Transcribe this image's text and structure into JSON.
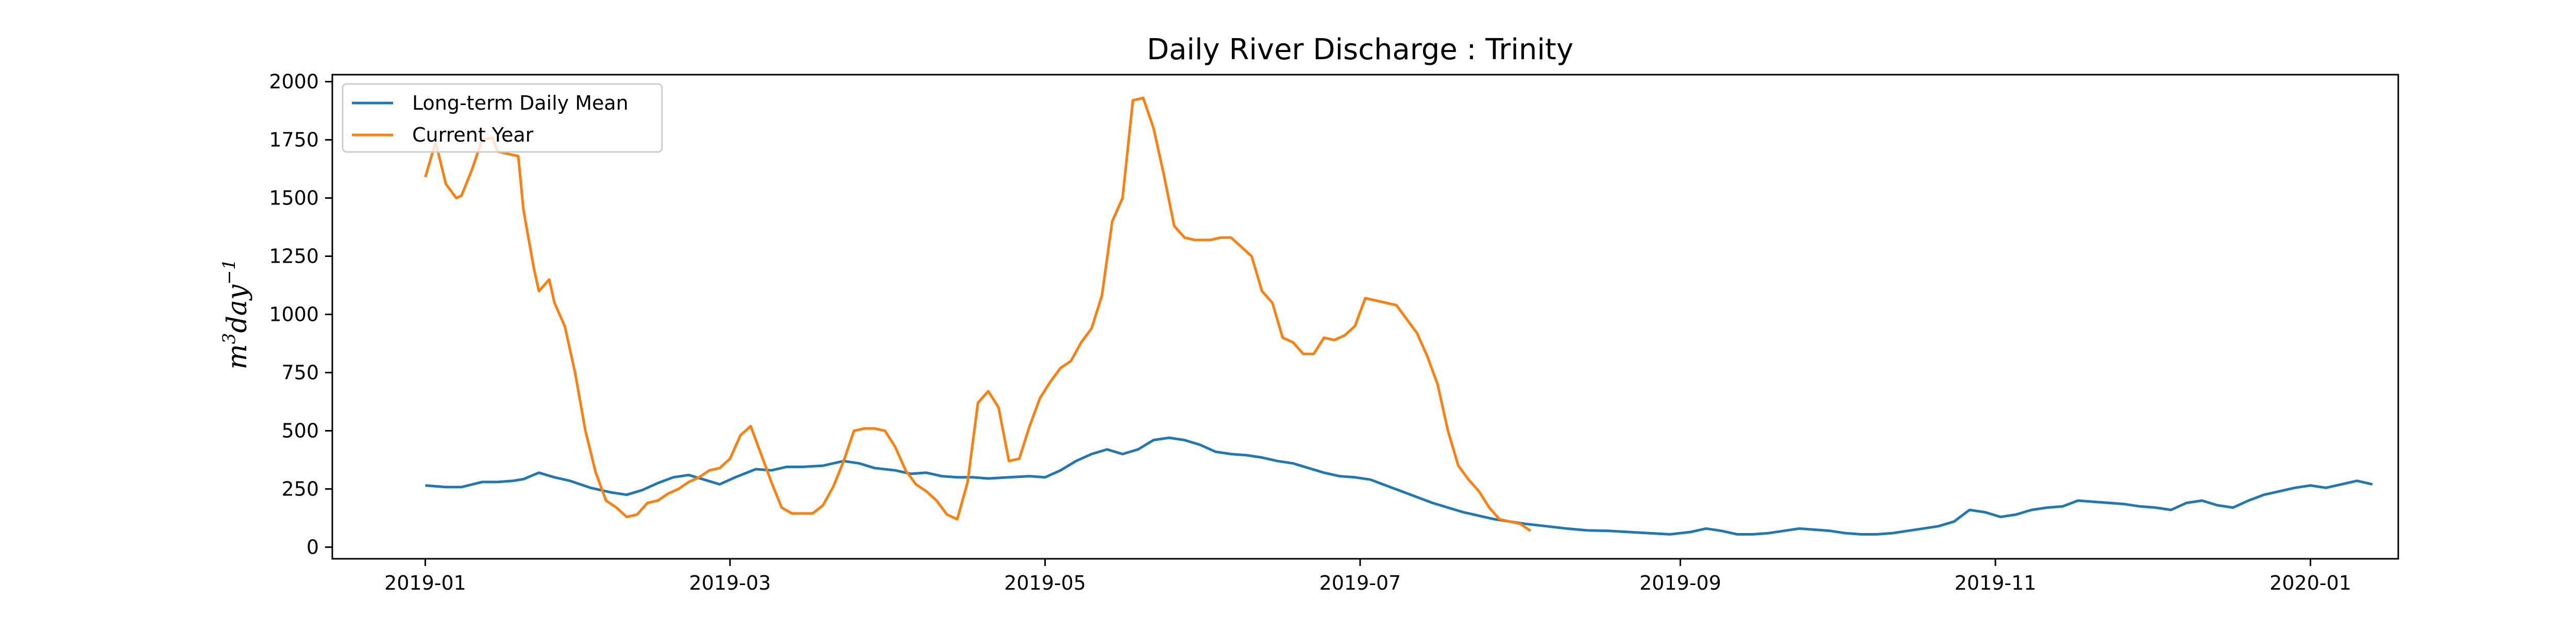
{
  "chart_data": {
    "type": "line",
    "title": "Daily River Discharge : Trinity",
    "ylabel": "m3day-1",
    "ylabel_parts": {
      "base": "m",
      "sup1": "3",
      "mid": "day",
      "sup2": "−1"
    },
    "xlabel": "",
    "xlim": [
      "2018-12-14",
      "2020-01-18"
    ],
    "ylim": [
      -50,
      2030
    ],
    "x_ticks": [
      "2019-01",
      "2019-03",
      "2019-05",
      "2019-07",
      "2019-09",
      "2019-11",
      "2020-01"
    ],
    "x_tick_dates": [
      "2019-01-01",
      "2019-03-01",
      "2019-05-01",
      "2019-07-01",
      "2019-09-01",
      "2019-11-01",
      "2020-01-01"
    ],
    "y_ticks": [
      0,
      250,
      500,
      750,
      1000,
      1250,
      1500,
      1750,
      2000
    ],
    "grid": false,
    "legend_position": "upper-left",
    "series": [
      {
        "name": "Long-term Daily Mean",
        "color": "#1f77b4",
        "points": [
          [
            "2019-01-01",
            265
          ],
          [
            "2019-01-05",
            258
          ],
          [
            "2019-01-08",
            258
          ],
          [
            "2019-01-12",
            280
          ],
          [
            "2019-01-15",
            280
          ],
          [
            "2019-01-18",
            285
          ],
          [
            "2019-01-20",
            292
          ],
          [
            "2019-01-23",
            320
          ],
          [
            "2019-01-26",
            300
          ],
          [
            "2019-01-29",
            285
          ],
          [
            "2019-02-02",
            255
          ],
          [
            "2019-02-06",
            235
          ],
          [
            "2019-02-09",
            225
          ],
          [
            "2019-02-12",
            245
          ],
          [
            "2019-02-15",
            275
          ],
          [
            "2019-02-18",
            300
          ],
          [
            "2019-02-21",
            310
          ],
          [
            "2019-02-24",
            290
          ],
          [
            "2019-02-27",
            270
          ],
          [
            "2019-03-02",
            300
          ],
          [
            "2019-03-06",
            335
          ],
          [
            "2019-03-09",
            330
          ],
          [
            "2019-03-12",
            345
          ],
          [
            "2019-03-15",
            345
          ],
          [
            "2019-03-19",
            350
          ],
          [
            "2019-03-23",
            370
          ],
          [
            "2019-03-26",
            360
          ],
          [
            "2019-03-29",
            340
          ],
          [
            "2019-04-02",
            330
          ],
          [
            "2019-04-05",
            315
          ],
          [
            "2019-04-08",
            320
          ],
          [
            "2019-04-11",
            305
          ],
          [
            "2019-04-14",
            300
          ],
          [
            "2019-04-17",
            300
          ],
          [
            "2019-04-20",
            295
          ],
          [
            "2019-04-24",
            300
          ],
          [
            "2019-04-28",
            305
          ],
          [
            "2019-05-01",
            300
          ],
          [
            "2019-05-04",
            330
          ],
          [
            "2019-05-07",
            370
          ],
          [
            "2019-05-10",
            400
          ],
          [
            "2019-05-13",
            420
          ],
          [
            "2019-05-16",
            400
          ],
          [
            "2019-05-19",
            420
          ],
          [
            "2019-05-22",
            460
          ],
          [
            "2019-05-25",
            470
          ],
          [
            "2019-05-28",
            460
          ],
          [
            "2019-05-31",
            440
          ],
          [
            "2019-06-03",
            410
          ],
          [
            "2019-06-06",
            400
          ],
          [
            "2019-06-09",
            395
          ],
          [
            "2019-06-12",
            385
          ],
          [
            "2019-06-15",
            370
          ],
          [
            "2019-06-18",
            360
          ],
          [
            "2019-06-21",
            340
          ],
          [
            "2019-06-24",
            320
          ],
          [
            "2019-06-27",
            305
          ],
          [
            "2019-06-30",
            300
          ],
          [
            "2019-07-03",
            290
          ],
          [
            "2019-07-06",
            265
          ],
          [
            "2019-07-09",
            240
          ],
          [
            "2019-07-12",
            215
          ],
          [
            "2019-07-15",
            190
          ],
          [
            "2019-07-18",
            170
          ],
          [
            "2019-07-21",
            150
          ],
          [
            "2019-07-24",
            135
          ],
          [
            "2019-07-27",
            120
          ],
          [
            "2019-07-30",
            110
          ],
          [
            "2019-08-02",
            100
          ],
          [
            "2019-08-06",
            90
          ],
          [
            "2019-08-10",
            80
          ],
          [
            "2019-08-14",
            72
          ],
          [
            "2019-08-18",
            70
          ],
          [
            "2019-08-22",
            65
          ],
          [
            "2019-08-26",
            60
          ],
          [
            "2019-08-30",
            55
          ],
          [
            "2019-09-03",
            65
          ],
          [
            "2019-09-06",
            80
          ],
          [
            "2019-09-09",
            70
          ],
          [
            "2019-09-12",
            55
          ],
          [
            "2019-09-15",
            55
          ],
          [
            "2019-09-18",
            60
          ],
          [
            "2019-09-21",
            70
          ],
          [
            "2019-09-24",
            80
          ],
          [
            "2019-09-27",
            75
          ],
          [
            "2019-09-30",
            70
          ],
          [
            "2019-10-03",
            60
          ],
          [
            "2019-10-06",
            55
          ],
          [
            "2019-10-09",
            55
          ],
          [
            "2019-10-12",
            60
          ],
          [
            "2019-10-15",
            70
          ],
          [
            "2019-10-18",
            80
          ],
          [
            "2019-10-21",
            90
          ],
          [
            "2019-10-24",
            110
          ],
          [
            "2019-10-27",
            160
          ],
          [
            "2019-10-30",
            150
          ],
          [
            "2019-11-02",
            130
          ],
          [
            "2019-11-05",
            140
          ],
          [
            "2019-11-08",
            160
          ],
          [
            "2019-11-11",
            170
          ],
          [
            "2019-11-14",
            175
          ],
          [
            "2019-11-17",
            200
          ],
          [
            "2019-11-20",
            195
          ],
          [
            "2019-11-23",
            190
          ],
          [
            "2019-11-26",
            185
          ],
          [
            "2019-11-29",
            175
          ],
          [
            "2019-12-02",
            170
          ],
          [
            "2019-12-05",
            160
          ],
          [
            "2019-12-08",
            190
          ],
          [
            "2019-12-11",
            200
          ],
          [
            "2019-12-14",
            180
          ],
          [
            "2019-12-17",
            170
          ],
          [
            "2019-12-20",
            200
          ],
          [
            "2019-12-23",
            225
          ],
          [
            "2019-12-26",
            240
          ],
          [
            "2019-12-29",
            255
          ],
          [
            "2020-01-01",
            265
          ],
          [
            "2020-01-04",
            255
          ],
          [
            "2020-01-07",
            270
          ],
          [
            "2020-01-10",
            285
          ],
          [
            "2020-01-13",
            270
          ]
        ]
      },
      {
        "name": "Current Year",
        "color": "#ff7f0e",
        "points": [
          [
            "2019-01-01",
            1590
          ],
          [
            "2019-01-03",
            1740
          ],
          [
            "2019-01-05",
            1560
          ],
          [
            "2019-01-07",
            1500
          ],
          [
            "2019-01-08",
            1510
          ],
          [
            "2019-01-10",
            1620
          ],
          [
            "2019-01-12",
            1750
          ],
          [
            "2019-01-14",
            1760
          ],
          [
            "2019-01-15",
            1700
          ],
          [
            "2019-01-17",
            1690
          ],
          [
            "2019-01-19",
            1680
          ],
          [
            "2019-01-20",
            1450
          ],
          [
            "2019-01-22",
            1200
          ],
          [
            "2019-01-23",
            1100
          ],
          [
            "2019-01-25",
            1150
          ],
          [
            "2019-01-26",
            1050
          ],
          [
            "2019-01-28",
            950
          ],
          [
            "2019-01-30",
            750
          ],
          [
            "2019-02-01",
            500
          ],
          [
            "2019-02-03",
            320
          ],
          [
            "2019-02-05",
            200
          ],
          [
            "2019-02-07",
            170
          ],
          [
            "2019-02-09",
            130
          ],
          [
            "2019-02-11",
            140
          ],
          [
            "2019-02-13",
            190
          ],
          [
            "2019-02-15",
            200
          ],
          [
            "2019-02-17",
            230
          ],
          [
            "2019-02-19",
            250
          ],
          [
            "2019-02-21",
            280
          ],
          [
            "2019-02-23",
            300
          ],
          [
            "2019-02-25",
            330
          ],
          [
            "2019-02-27",
            340
          ],
          [
            "2019-03-01",
            380
          ],
          [
            "2019-03-03",
            480
          ],
          [
            "2019-03-05",
            520
          ],
          [
            "2019-03-07",
            400
          ],
          [
            "2019-03-09",
            280
          ],
          [
            "2019-03-11",
            170
          ],
          [
            "2019-03-13",
            145
          ],
          [
            "2019-03-15",
            145
          ],
          [
            "2019-03-17",
            145
          ],
          [
            "2019-03-19",
            180
          ],
          [
            "2019-03-21",
            260
          ],
          [
            "2019-03-23",
            370
          ],
          [
            "2019-03-25",
            500
          ],
          [
            "2019-03-27",
            510
          ],
          [
            "2019-03-29",
            510
          ],
          [
            "2019-03-31",
            500
          ],
          [
            "2019-04-02",
            430
          ],
          [
            "2019-04-04",
            330
          ],
          [
            "2019-04-06",
            270
          ],
          [
            "2019-04-08",
            240
          ],
          [
            "2019-04-10",
            200
          ],
          [
            "2019-04-12",
            140
          ],
          [
            "2019-04-14",
            120
          ],
          [
            "2019-04-16",
            280
          ],
          [
            "2019-04-18",
            620
          ],
          [
            "2019-04-20",
            670
          ],
          [
            "2019-04-22",
            600
          ],
          [
            "2019-04-24",
            370
          ],
          [
            "2019-04-26",
            380
          ],
          [
            "2019-04-28",
            520
          ],
          [
            "2019-04-30",
            640
          ],
          [
            "2019-05-02",
            710
          ],
          [
            "2019-05-04",
            770
          ],
          [
            "2019-05-06",
            800
          ],
          [
            "2019-05-08",
            880
          ],
          [
            "2019-05-10",
            940
          ],
          [
            "2019-05-12",
            1080
          ],
          [
            "2019-05-14",
            1400
          ],
          [
            "2019-05-16",
            1500
          ],
          [
            "2019-05-18",
            1920
          ],
          [
            "2019-05-20",
            1930
          ],
          [
            "2019-05-22",
            1800
          ],
          [
            "2019-05-24",
            1600
          ],
          [
            "2019-05-26",
            1380
          ],
          [
            "2019-05-28",
            1330
          ],
          [
            "2019-05-30",
            1320
          ],
          [
            "2019-06-02",
            1320
          ],
          [
            "2019-06-04",
            1330
          ],
          [
            "2019-06-06",
            1330
          ],
          [
            "2019-06-08",
            1290
          ],
          [
            "2019-06-10",
            1250
          ],
          [
            "2019-06-12",
            1100
          ],
          [
            "2019-06-14",
            1050
          ],
          [
            "2019-06-16",
            900
          ],
          [
            "2019-06-18",
            880
          ],
          [
            "2019-06-20",
            830
          ],
          [
            "2019-06-22",
            830
          ],
          [
            "2019-06-24",
            900
          ],
          [
            "2019-06-26",
            890
          ],
          [
            "2019-06-28",
            910
          ],
          [
            "2019-06-30",
            950
          ],
          [
            "2019-07-02",
            1070
          ],
          [
            "2019-07-04",
            1060
          ],
          [
            "2019-07-06",
            1050
          ],
          [
            "2019-07-08",
            1040
          ],
          [
            "2019-07-10",
            980
          ],
          [
            "2019-07-12",
            920
          ],
          [
            "2019-07-14",
            820
          ],
          [
            "2019-07-16",
            700
          ],
          [
            "2019-07-18",
            500
          ],
          [
            "2019-07-20",
            350
          ],
          [
            "2019-07-22",
            290
          ],
          [
            "2019-07-24",
            240
          ],
          [
            "2019-07-26",
            170
          ],
          [
            "2019-07-28",
            120
          ],
          [
            "2019-07-30",
            110
          ],
          [
            "2019-08-01",
            100
          ],
          [
            "2019-08-03",
            70
          ]
        ]
      }
    ]
  }
}
